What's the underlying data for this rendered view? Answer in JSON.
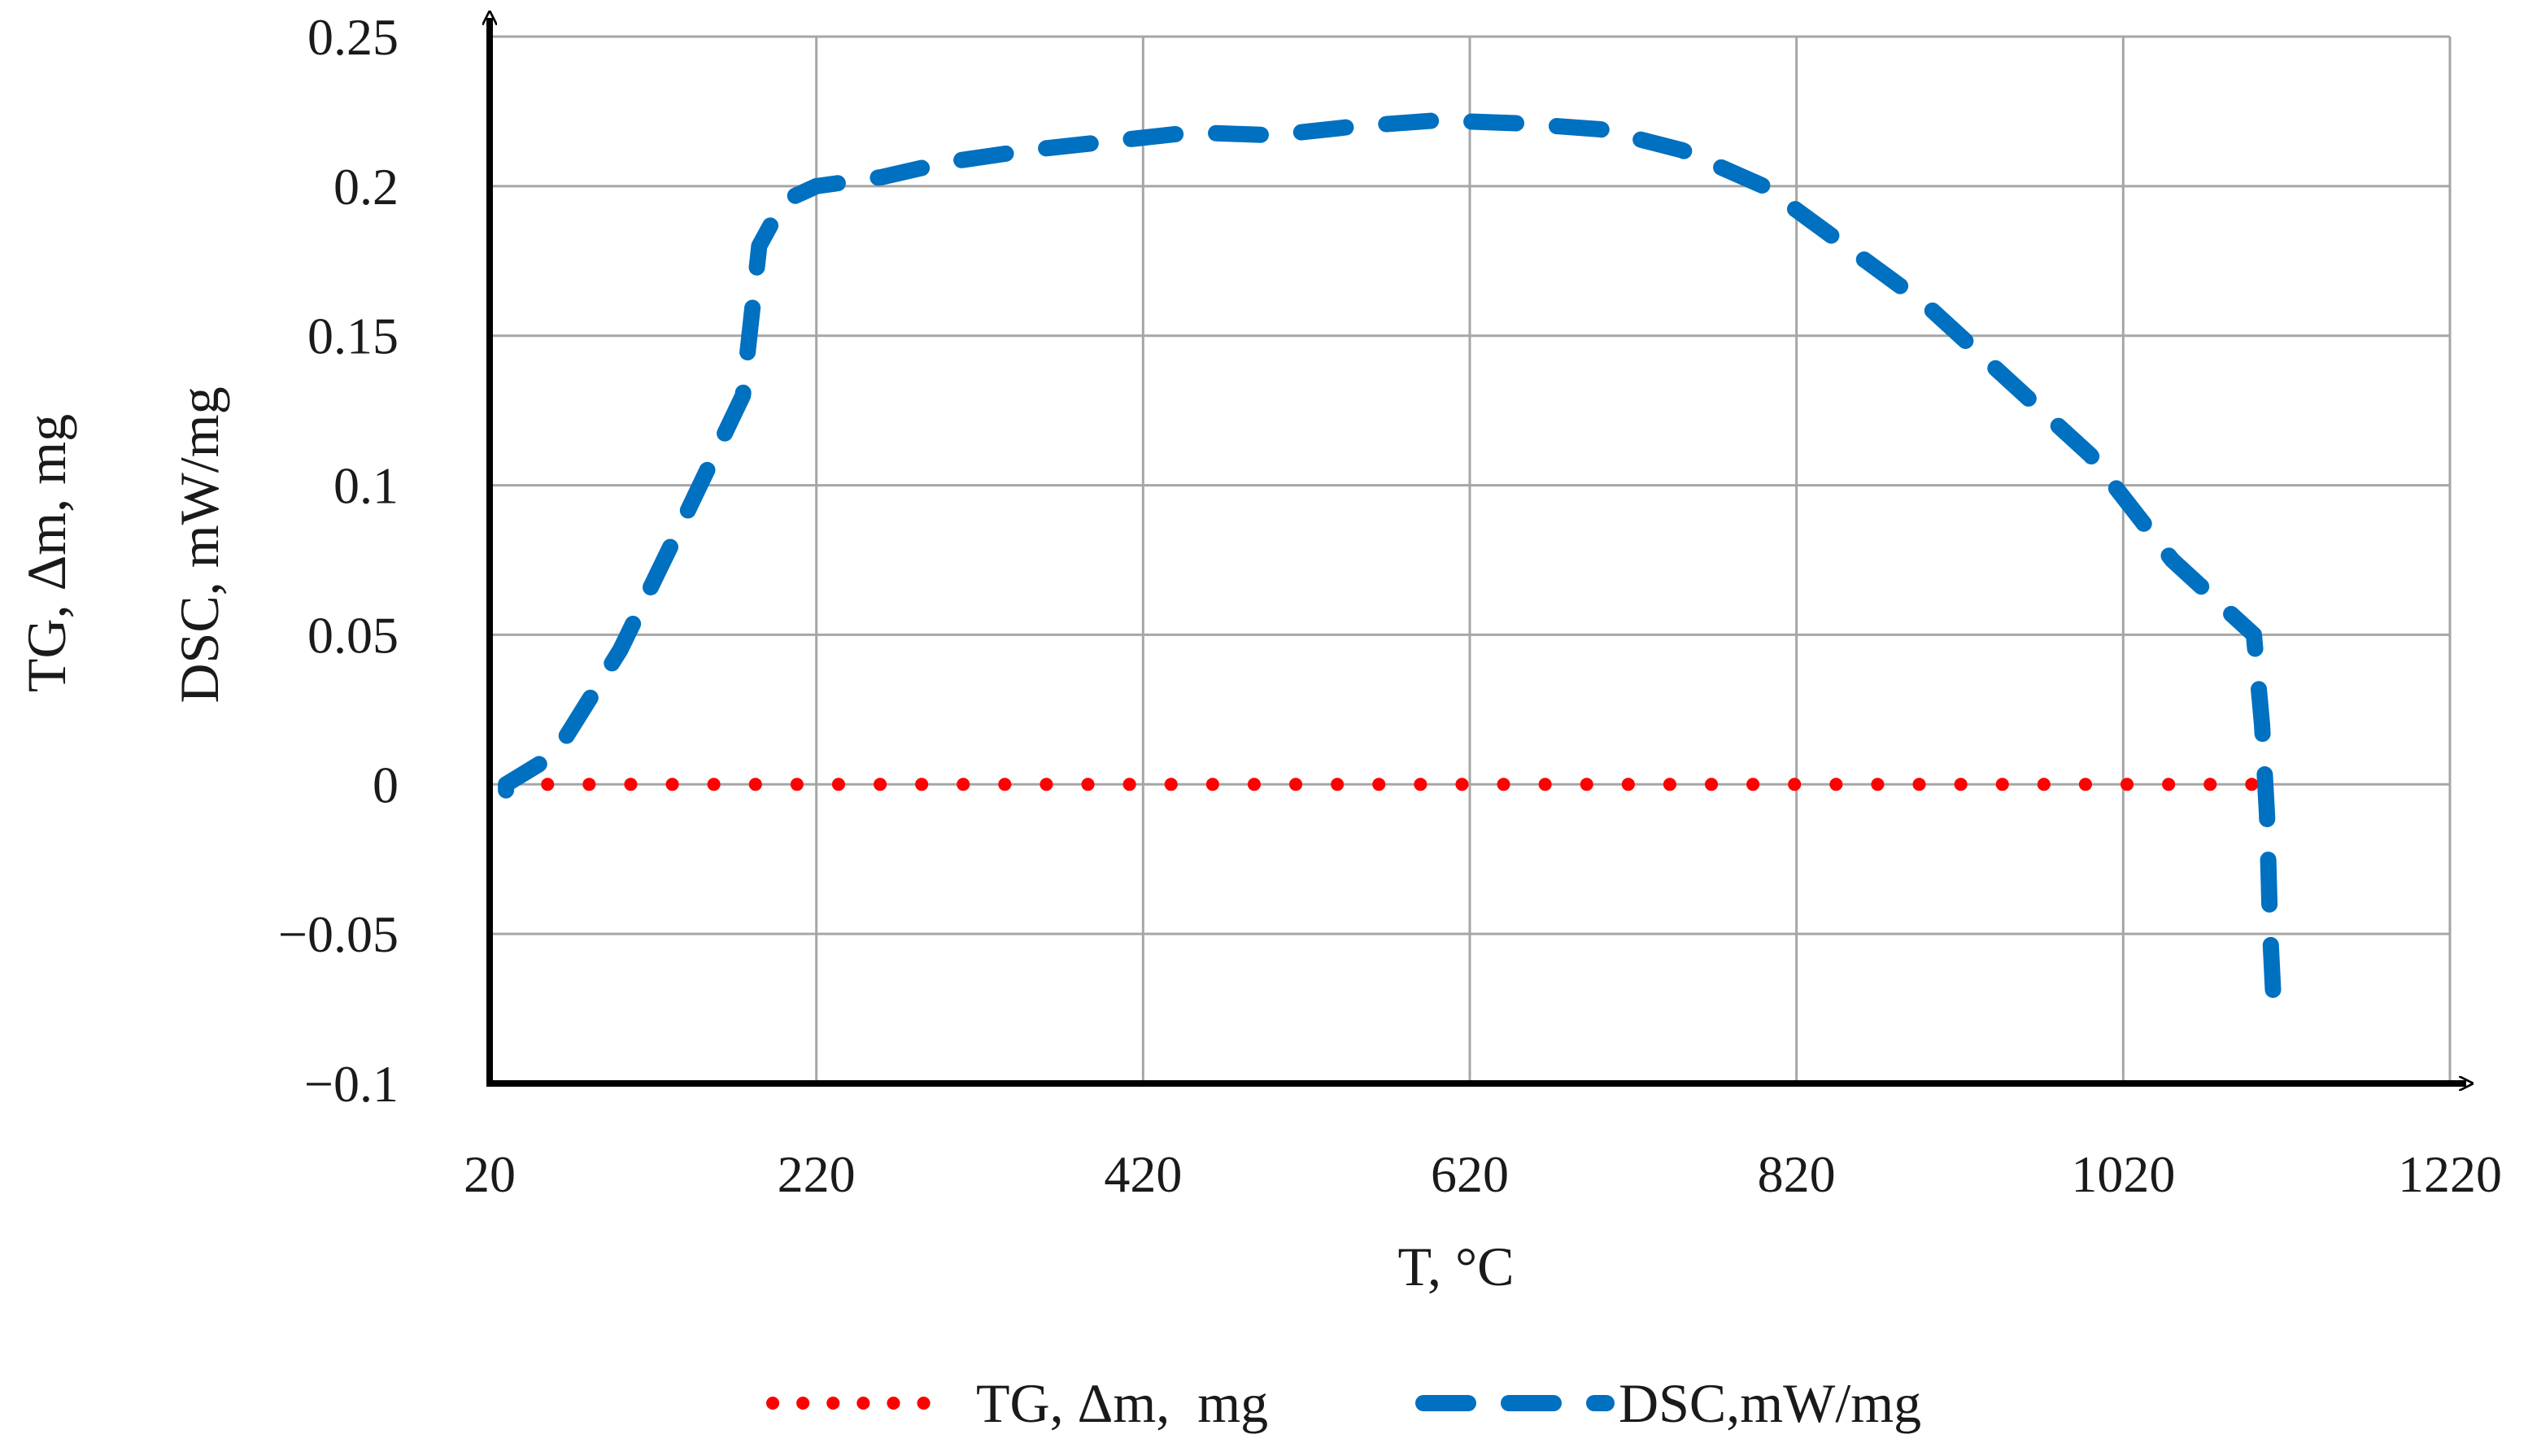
{
  "chart_data": {
    "type": "line",
    "title": "",
    "xlabel": "T, °C",
    "ylabel_outer": "TG, Δm, mg",
    "ylabel_inner": "DSC, mW/mg",
    "xlim": [
      20,
      1220
    ],
    "ylim": [
      -0.1,
      0.25
    ],
    "xticks": [
      20,
      220,
      420,
      620,
      820,
      1020,
      1220
    ],
    "yticks": [
      -0.1,
      -0.05,
      0,
      0.05,
      0.1,
      0.15,
      0.2,
      0.25
    ],
    "xtick_labels": [
      "20",
      "220",
      "420",
      "620",
      "820",
      "1020",
      "1220"
    ],
    "ytick_labels": [
      "−0.1",
      "−0.05",
      "0",
      "0.05",
      "0.1",
      "0.15",
      "0.2",
      "0.25"
    ],
    "grid": true,
    "legend_position": "bottom",
    "series": [
      {
        "name": "TG, Δm,  mg",
        "style": "dotted",
        "color": "#ff0000",
        "x": [
          30,
          1115
        ],
        "values": [
          0,
          0
        ]
      },
      {
        "name": "DSC,mW/mg",
        "style": "dashed",
        "color": "#0070c0",
        "x": [
          30,
          30,
          60,
          100,
          140,
          175,
          185,
          200,
          220,
          260,
          300,
          350,
          400,
          450,
          500,
          550,
          600,
          650,
          700,
          750,
          800,
          850,
          900,
          950,
          1000,
          1050,
          1080,
          1100,
          1105,
          1108,
          1110,
          1112
        ],
        "values": [
          -0.002,
          0.0,
          0.01,
          0.045,
          0.09,
          0.13,
          0.18,
          0.195,
          0.2,
          0.203,
          0.208,
          0.212,
          0.215,
          0.218,
          0.217,
          0.22,
          0.222,
          0.221,
          0.219,
          0.212,
          0.2,
          0.18,
          0.16,
          0.135,
          0.11,
          0.075,
          0.06,
          0.05,
          0.02,
          -0.01,
          -0.05,
          -0.072
        ]
      }
    ]
  }
}
